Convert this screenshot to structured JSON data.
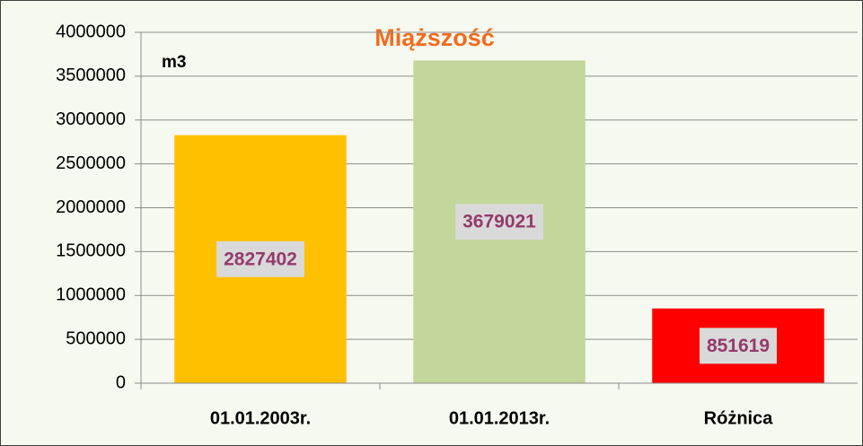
{
  "chart_data": {
    "type": "bar",
    "title": "Miąższość",
    "y_label": "m3",
    "categories": [
      "01.01.2003r.",
      "01.01.2013r.",
      "Różnica"
    ],
    "values": [
      2827402,
      3679021,
      851619
    ],
    "colors": [
      "#ffc000",
      "#c3d69b",
      "#ff0000"
    ],
    "ylim": [
      0,
      4000000
    ],
    "yticks": [
      0,
      500000,
      1000000,
      1500000,
      2000000,
      2500000,
      3000000,
      3500000,
      4000000
    ],
    "grid": true
  }
}
